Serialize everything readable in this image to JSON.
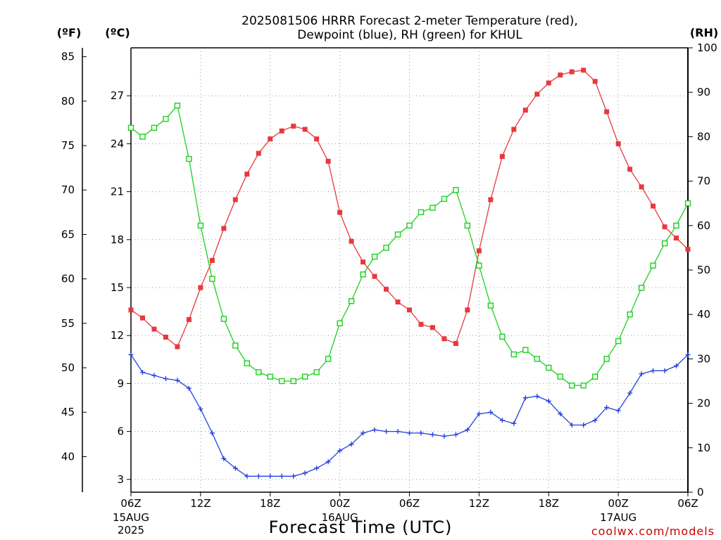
{
  "title_lines": [
    "2025081506 HRRR Forecast 2-meter Temperature (red),",
    "Dewpoint (blue), RH (green) for KHUL"
  ],
  "units": {
    "fahrenheit": "(ºF)",
    "celsius": "(ºC)",
    "rh": "(RH)"
  },
  "xlabel": "Forecast Time (UTC)",
  "credit": "coolwx.com/models",
  "colors": {
    "temperature": "#e8383d",
    "dewpoint": "#2642e0",
    "rh": "#1ecf1e",
    "grid": "#999999"
  },
  "chart_data": {
    "type": "line",
    "title": "2025081506 HRRR Forecast 2-meter Temperature (red), Dewpoint (blue), RH (green) for KHUL",
    "xlabel": "Forecast Time (UTC)",
    "x_hours": [
      0,
      1,
      2,
      3,
      4,
      5,
      6,
      7,
      8,
      9,
      10,
      11,
      12,
      13,
      14,
      15,
      16,
      17,
      18,
      19,
      20,
      21,
      22,
      23,
      24,
      25,
      26,
      27,
      28,
      29,
      30,
      31,
      32,
      33,
      34,
      35,
      36,
      37,
      38,
      39,
      40,
      41,
      42,
      43,
      44,
      45,
      46,
      47,
      48
    ],
    "x_ticks": [
      {
        "hour": 0,
        "label": "06Z",
        "sub": [
          "15AUG",
          "2025"
        ]
      },
      {
        "hour": 6,
        "label": "12Z",
        "sub": []
      },
      {
        "hour": 12,
        "label": "18Z",
        "sub": []
      },
      {
        "hour": 18,
        "label": "00Z",
        "sub": [
          "16AUG"
        ]
      },
      {
        "hour": 24,
        "label": "06Z",
        "sub": []
      },
      {
        "hour": 30,
        "label": "12Z",
        "sub": []
      },
      {
        "hour": 36,
        "label": "18Z",
        "sub": []
      },
      {
        "hour": 42,
        "label": "00Z",
        "sub": [
          "17AUG"
        ]
      },
      {
        "hour": 48,
        "label": "06Z",
        "sub": []
      }
    ],
    "axes": {
      "celsius": {
        "range": [
          2.2,
          30.0
        ],
        "ticks": [
          3,
          6,
          9,
          12,
          15,
          18,
          21,
          24,
          27
        ]
      },
      "fahrenheit": {
        "range": [
          36,
          86
        ],
        "ticks": [
          40,
          45,
          50,
          55,
          60,
          65,
          70,
          75,
          80,
          85
        ]
      },
      "rh": {
        "range": [
          0,
          100
        ],
        "ticks": [
          0,
          10,
          20,
          30,
          40,
          50,
          60,
          70,
          80,
          90,
          100
        ]
      }
    },
    "grid": true,
    "series": [
      {
        "name": "Temperature",
        "key": "temperature",
        "axis": "celsius",
        "marker": "filled-square",
        "values": [
          13.6,
          13.1,
          12.4,
          11.9,
          11.3,
          13.0,
          15.0,
          16.7,
          18.7,
          20.5,
          22.1,
          23.4,
          24.3,
          24.8,
          25.1,
          24.9,
          24.3,
          22.9,
          19.7,
          17.9,
          16.6,
          15.7,
          14.9,
          14.1,
          13.6,
          12.7,
          12.5,
          11.8,
          11.5,
          13.6,
          17.3,
          20.5,
          23.2,
          24.9,
          26.1,
          27.1,
          27.8,
          28.3,
          28.5,
          28.6,
          27.9,
          26.0,
          24.0,
          22.4,
          21.3,
          20.1,
          18.8,
          18.1,
          17.4
        ]
      },
      {
        "name": "Dewpoint",
        "key": "dewpoint",
        "axis": "celsius",
        "marker": "plus",
        "values": [
          10.8,
          9.7,
          9.5,
          9.3,
          9.2,
          8.7,
          7.4,
          5.9,
          4.3,
          3.7,
          3.2,
          3.2,
          3.2,
          3.2,
          3.2,
          3.4,
          3.7,
          4.1,
          4.8,
          5.2,
          5.9,
          6.1,
          6.0,
          6.0,
          5.9,
          5.9,
          5.8,
          5.7,
          5.8,
          6.1,
          7.1,
          7.2,
          6.7,
          6.5,
          8.1,
          8.2,
          7.9,
          7.1,
          6.4,
          6.4,
          6.7,
          7.5,
          7.3,
          8.4,
          9.6,
          9.8,
          9.8,
          10.1,
          10.8
        ]
      },
      {
        "name": "RH",
        "key": "rh",
        "axis": "rh",
        "marker": "open-square",
        "values": [
          82,
          80,
          82,
          84,
          87,
          75,
          60,
          48,
          39,
          33,
          29,
          27,
          26,
          25,
          25,
          26,
          27,
          30,
          38,
          43,
          49,
          53,
          55,
          58,
          60,
          63,
          64,
          66,
          68,
          60,
          51,
          42,
          35,
          31,
          32,
          30,
          28,
          26,
          24,
          24,
          26,
          30,
          34,
          40,
          46,
          51,
          56,
          60,
          65
        ]
      }
    ]
  }
}
